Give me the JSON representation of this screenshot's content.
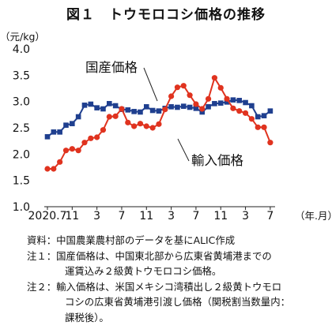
{
  "chart_data": {
    "type": "line",
    "title": "図１　トウモロコシ価格の推移",
    "ylabel": "（元/kg）",
    "xlabel": "（年.月）",
    "ylim": [
      1.0,
      4.0
    ],
    "yticks": [
      "1.0",
      "1.5",
      "2.0",
      "2.5",
      "3.0",
      "3.5",
      "4.0"
    ],
    "xticks": [
      {
        "i": 0,
        "label": "2020.7"
      },
      {
        "i": 4,
        "label": "11"
      },
      {
        "i": 8,
        "label": "3"
      },
      {
        "i": 12,
        "label": "7"
      },
      {
        "i": 16,
        "label": "11"
      },
      {
        "i": 20,
        "label": "3"
      },
      {
        "i": 24,
        "label": "7"
      },
      {
        "i": 28,
        "label": "11"
      },
      {
        "i": 32,
        "label": "3"
      },
      {
        "i": 36,
        "label": "7"
      }
    ],
    "series": [
      {
        "name": "国産価格",
        "color": "#1f3f8f",
        "marker": "square",
        "values": [
          2.33,
          2.42,
          2.42,
          2.55,
          2.58,
          2.71,
          2.93,
          2.95,
          2.88,
          2.86,
          2.96,
          2.92,
          2.85,
          2.84,
          2.81,
          2.8,
          2.9,
          2.83,
          2.82,
          2.87,
          2.9,
          2.89,
          2.91,
          2.89,
          2.87,
          2.8,
          2.9,
          2.96,
          2.97,
          2.99,
          3.03,
          3.02,
          2.98,
          2.92,
          2.71,
          2.73,
          2.82
        ]
      },
      {
        "name": "輸入価格",
        "color": "#e0331f",
        "marker": "circle",
        "values": [
          1.72,
          1.72,
          1.85,
          2.07,
          2.1,
          2.07,
          2.22,
          2.3,
          2.32,
          2.46,
          2.71,
          2.72,
          2.86,
          2.6,
          2.53,
          2.58,
          2.53,
          2.5,
          2.57,
          2.85,
          3.1,
          3.27,
          3.3,
          3.12,
          2.95,
          2.86,
          3.05,
          3.45,
          3.26,
          3.05,
          2.87,
          2.82,
          2.78,
          2.67,
          2.51,
          2.51,
          2.22
        ]
      }
    ]
  },
  "notes": [
    {
      "text": "資料：中国農業農村部のデータを基にALIC作成"
    },
    {
      "text": "注１：国産価格は、中国東北部から広東省黄埔港までの"
    },
    {
      "text": "運賃込み２級黄トウモロコシ価格。",
      "cont": true
    },
    {
      "text": "注２：輸入価格は、米国メキシコ湾積出し２級黄トウモロ"
    },
    {
      "text": "コシの広東省黄埔港引渡し価格（関税割当数量内：",
      "cont": true
    },
    {
      "text": "課税後）。",
      "cont": true
    }
  ]
}
